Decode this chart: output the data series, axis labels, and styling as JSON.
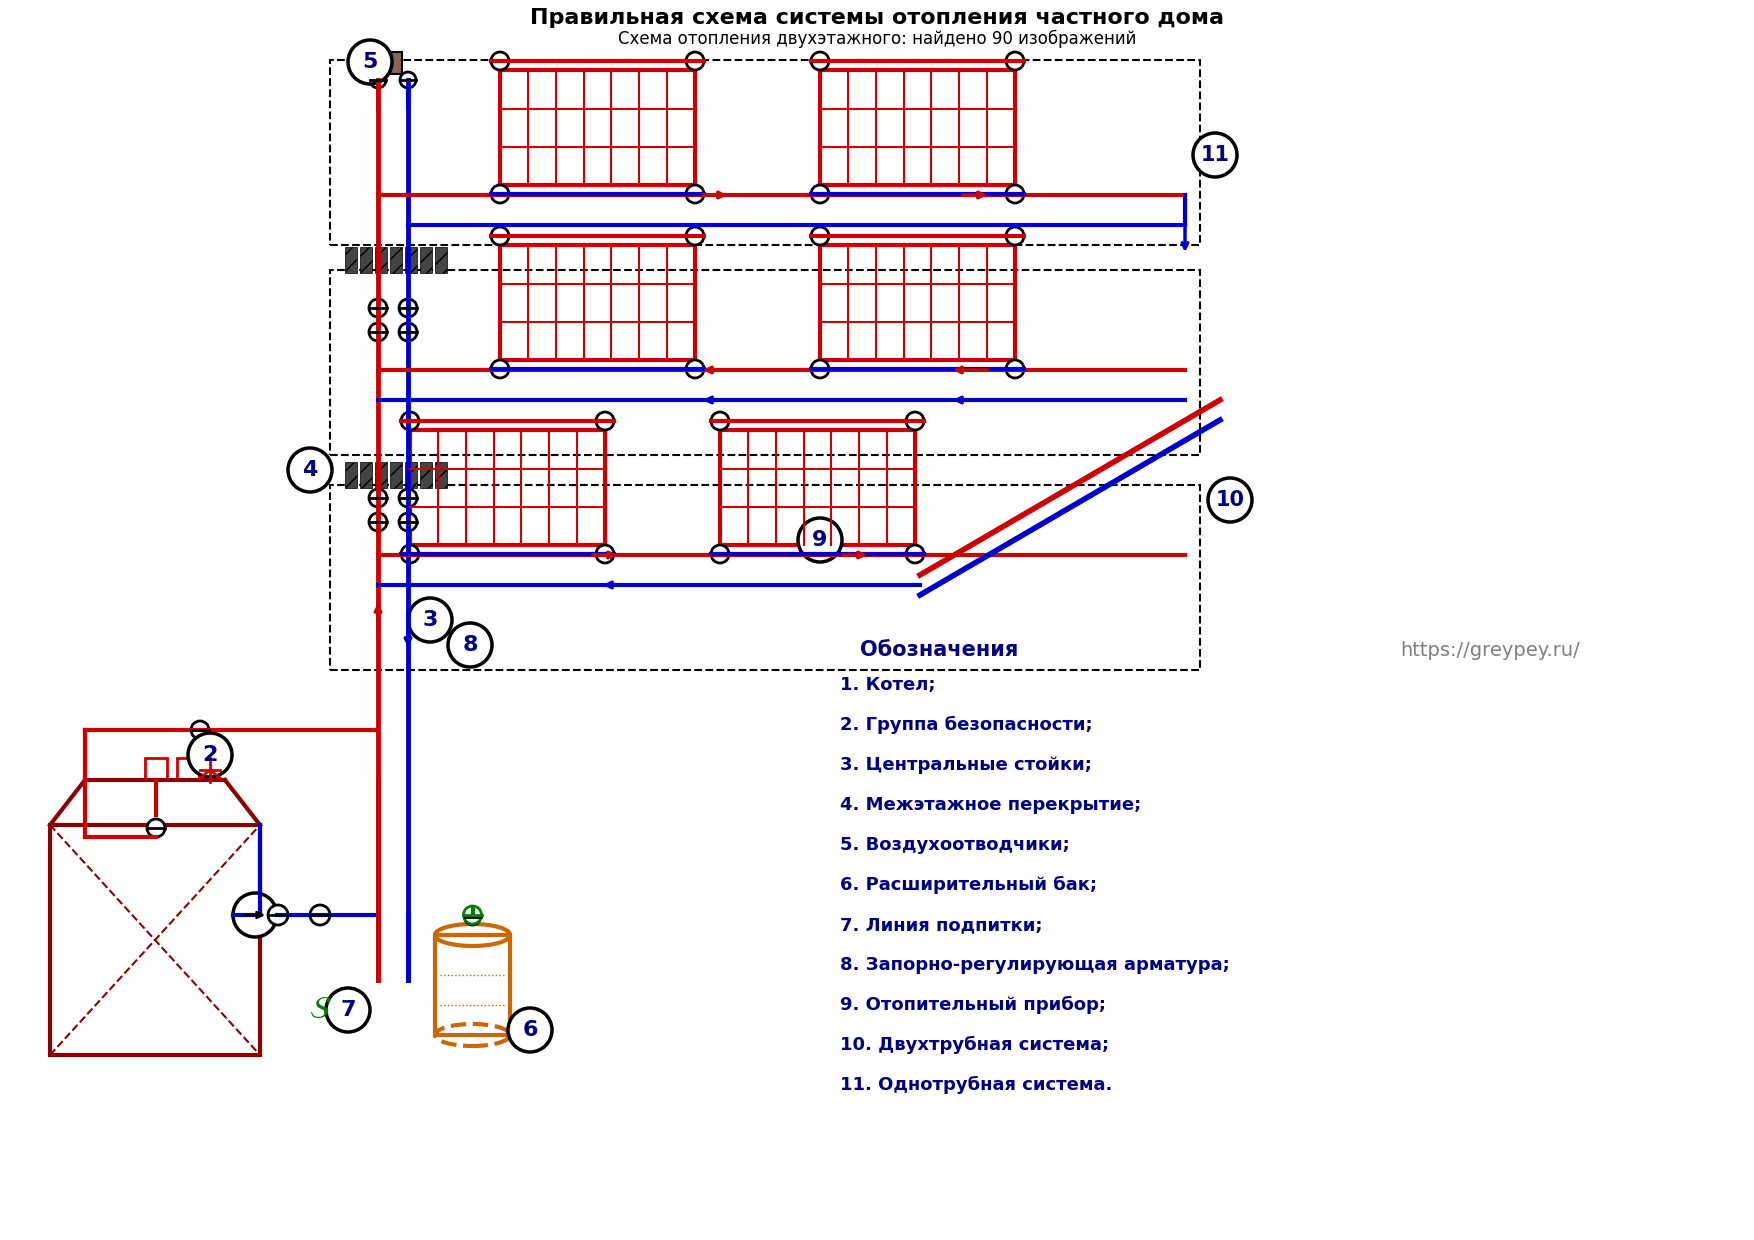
{
  "title": "Правильная схема системы отопления частного дома",
  "subtitle": "Схема отопления двухэтажного: найдено 90 изображений",
  "bg_color": "#ffffff",
  "red": "#cc0000",
  "dark_red": "#8B0000",
  "blue": "#0000cc",
  "black": "#000000",
  "green": "#008000",
  "orange_brown": "#cc6600",
  "legend": [
    "1. Котел;",
    "2. Группа безопасности;",
    "3. Центральные стойки;",
    "4. Межэтажное перекрытие;",
    "5. Воздухоотводчики;",
    "6. Расширительный бак;",
    "7. Линия подпитки;",
    "8. Запорно-регулирующая арматура;",
    "9. Отопительный прибор;",
    "10. Двухтрубная система;",
    "11. Однотрубная система."
  ],
  "website": "https://greypey.ru/"
}
